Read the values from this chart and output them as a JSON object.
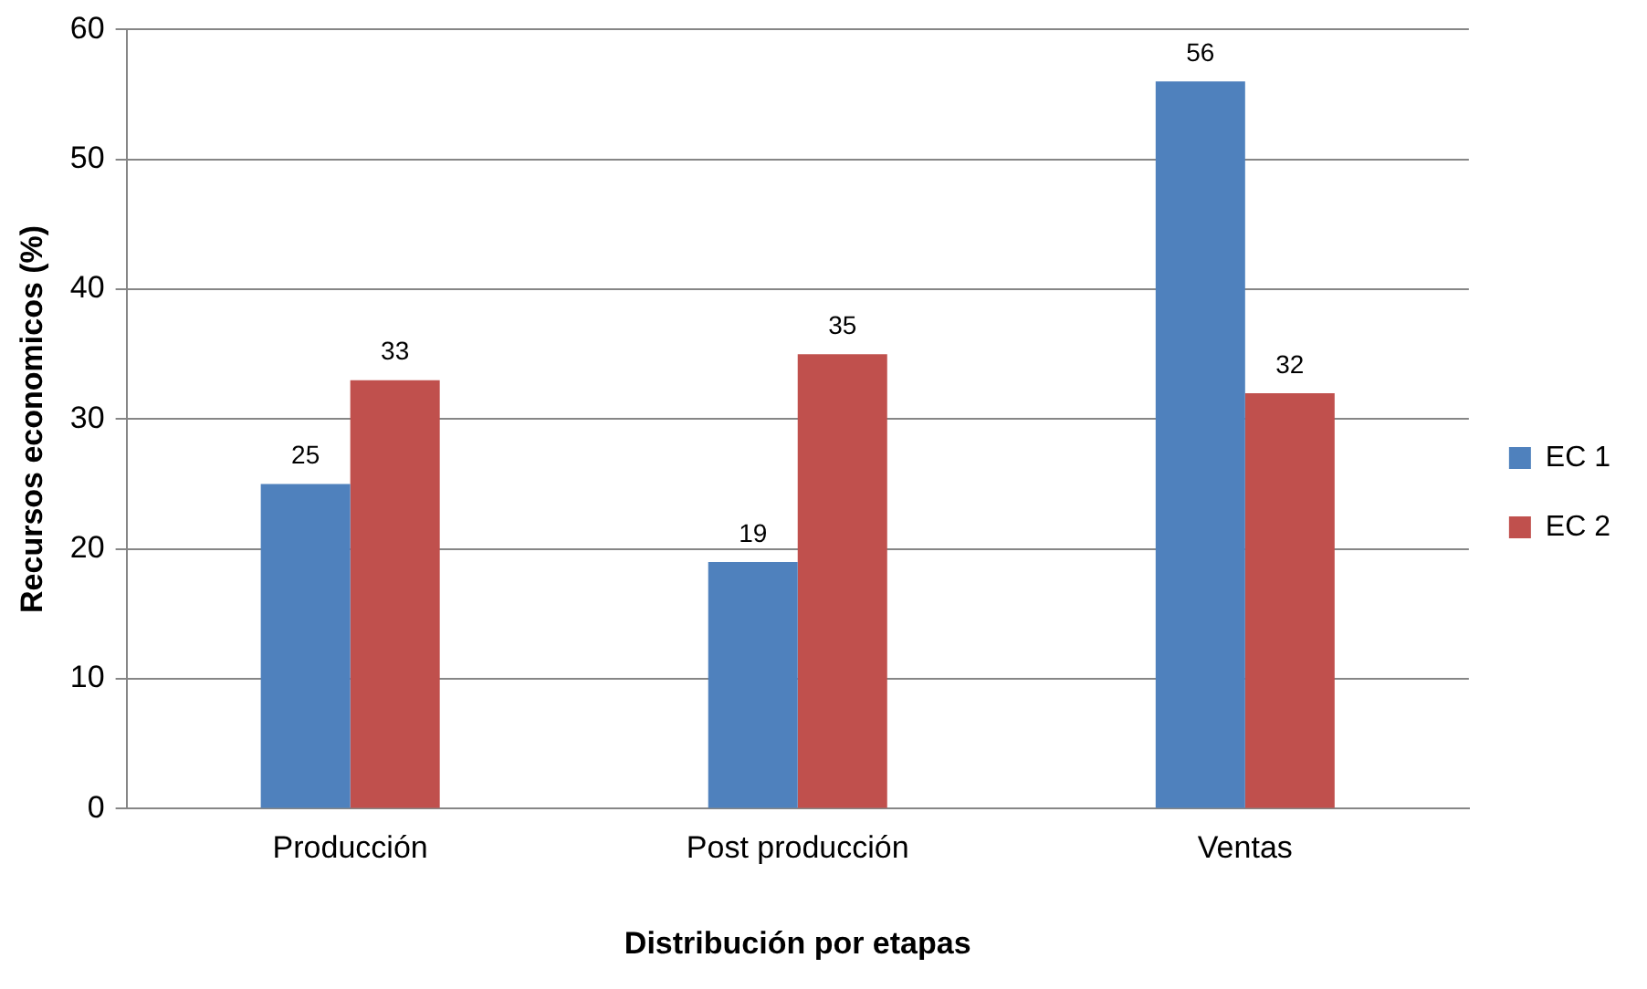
{
  "chart_data": {
    "type": "bar",
    "xlabel": "Distribución por etapas",
    "ylabel": "Recursos economicos (%)",
    "categories": [
      "Producción",
      "Post producción",
      "Ventas"
    ],
    "series": [
      {
        "name": "EC 1",
        "color": "#4f81bd",
        "values": [
          25,
          19,
          56
        ]
      },
      {
        "name": "EC 2",
        "color": "#c0504d",
        "values": [
          33,
          35,
          32
        ]
      }
    ],
    "ylim": [
      0,
      60
    ],
    "yticks": [
      0,
      10,
      20,
      30,
      40,
      50,
      60
    ],
    "grid": "y",
    "legend": "right",
    "data_labels": true
  }
}
